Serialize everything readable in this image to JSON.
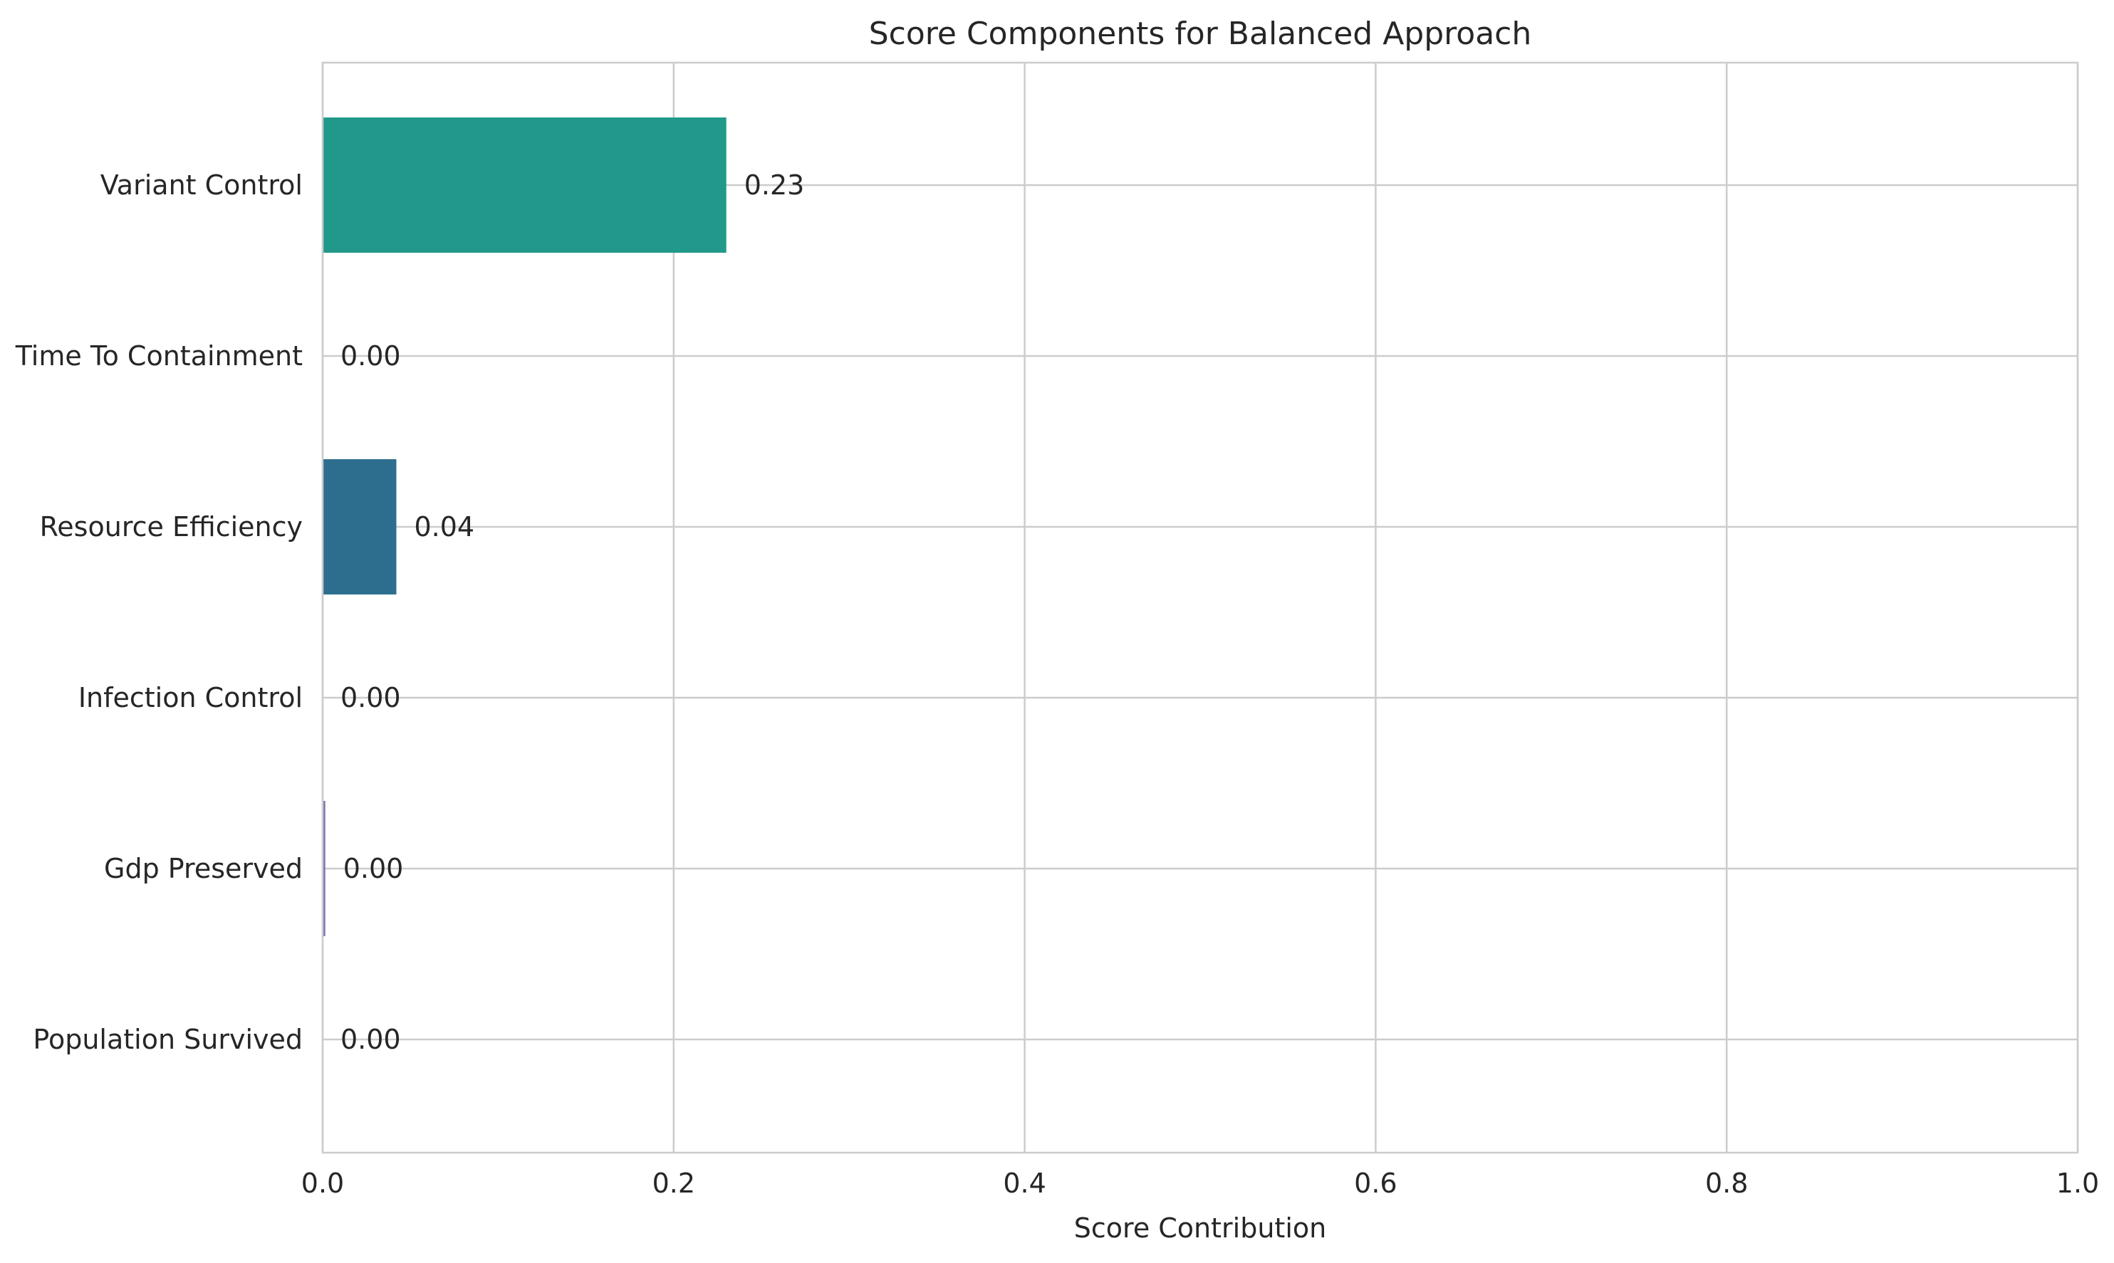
{
  "chart_data": {
    "type": "bar",
    "orientation": "horizontal",
    "title": "Score Components for Balanced Approach",
    "xlabel": "Score Contribution",
    "ylabel": "",
    "xlim": [
      0.0,
      1.0
    ],
    "xticks": [
      0.0,
      0.2,
      0.4,
      0.6,
      0.8,
      1.0
    ],
    "xtick_labels": [
      "0.0",
      "0.2",
      "0.4",
      "0.6",
      "0.8",
      "1.0"
    ],
    "grid": true,
    "categories": [
      "Population Survived",
      "Gdp Preserved",
      "Infection Control",
      "Resource Efficiency",
      "Time To Containment",
      "Variant Control"
    ],
    "values": [
      0.0,
      0.0015,
      0.0,
      0.042,
      0.0,
      0.23
    ],
    "value_labels": [
      "0.00",
      "0.00",
      "0.00",
      "0.04",
      "0.00",
      "0.23"
    ],
    "colors": [
      "#fde725",
      "#7e72b0",
      "#9bd93c",
      "#2d6e8e",
      "#3fbc73",
      "#21998a"
    ]
  }
}
